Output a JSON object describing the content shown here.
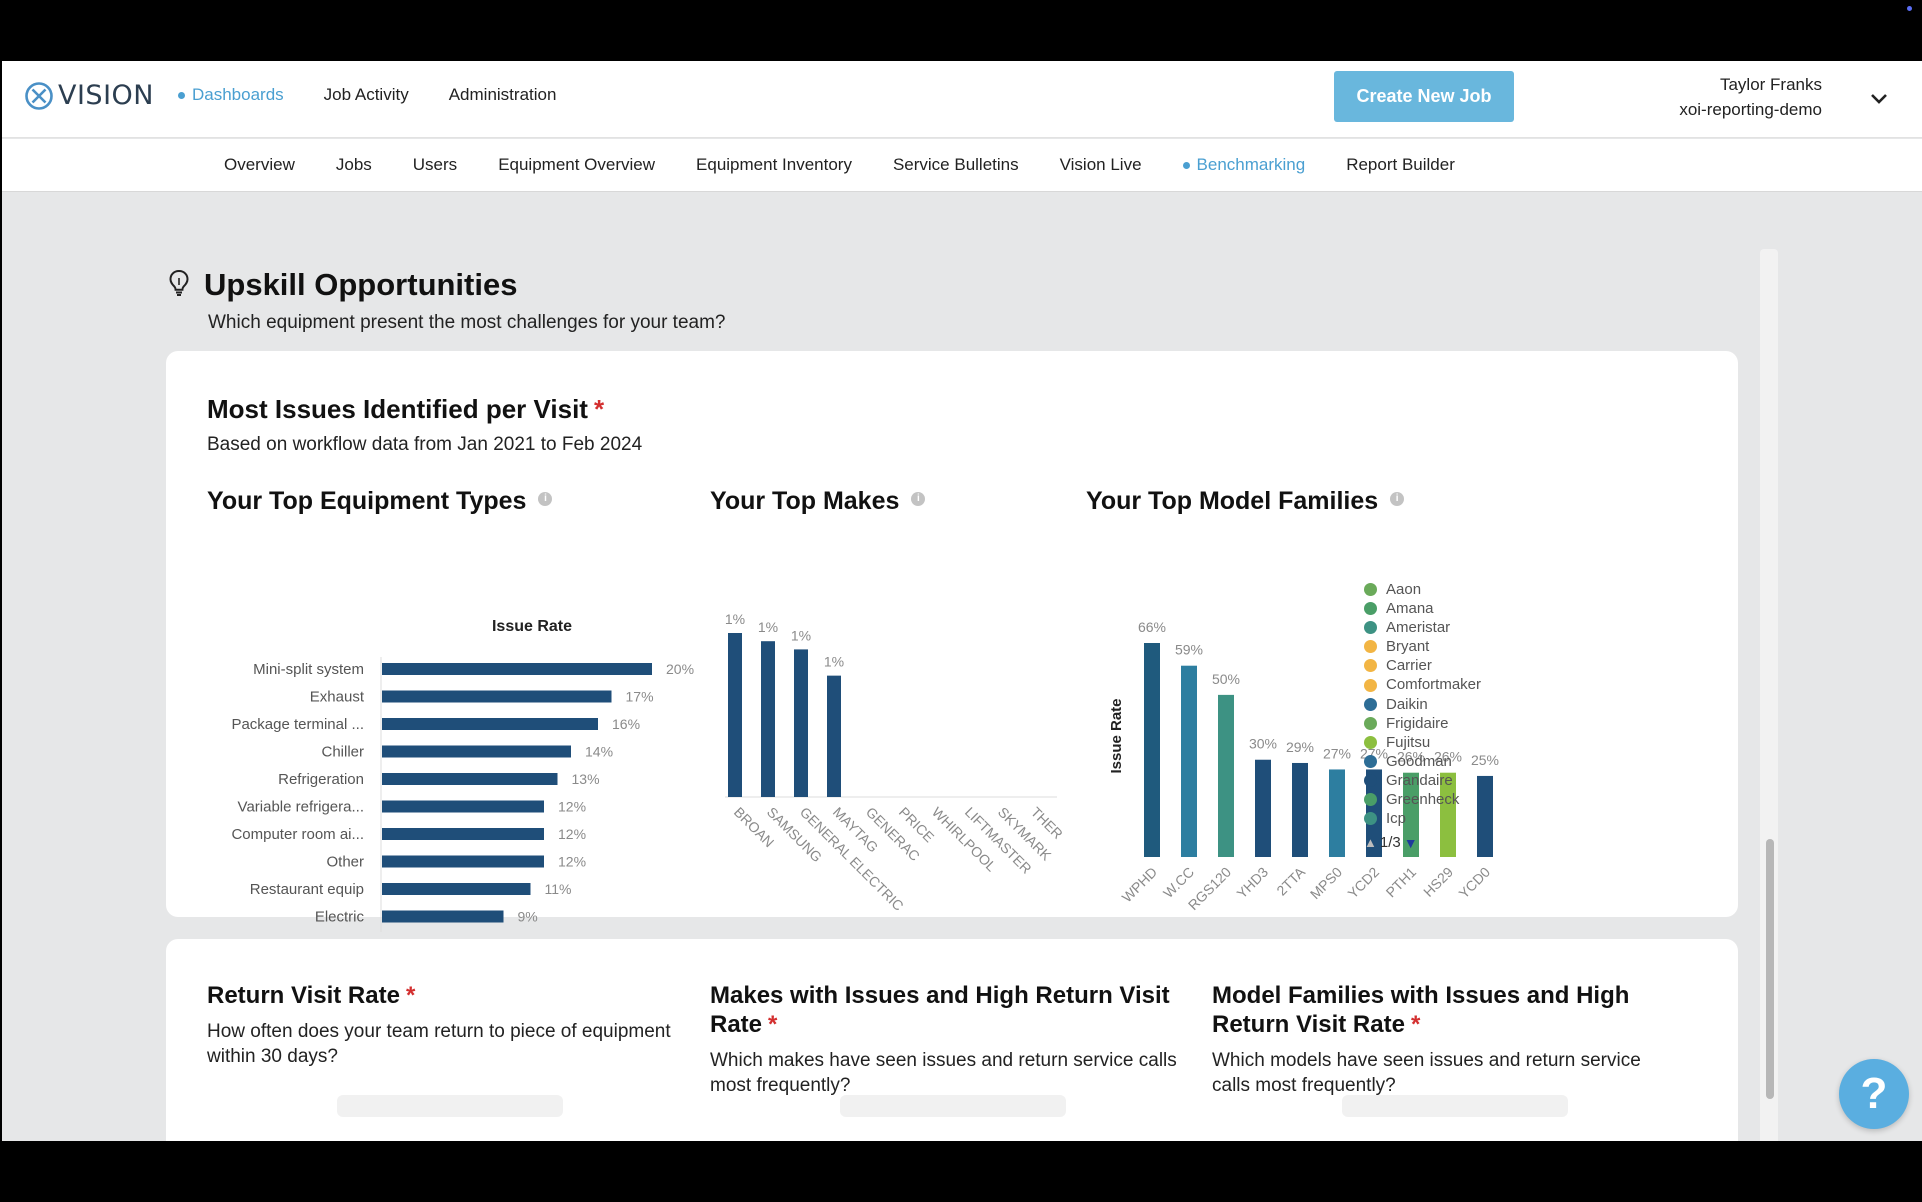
{
  "header": {
    "logo_text": "VISION",
    "nav": [
      "Dashboards",
      "Job Activity",
      "Administration"
    ],
    "create_button": "Create New Job",
    "user_name": "Taylor Franks",
    "user_org": "xoi-reporting-demo"
  },
  "subnav": [
    "Overview",
    "Jobs",
    "Users",
    "Equipment Overview",
    "Equipment Inventory",
    "Service Bulletins",
    "Vision Live",
    "Benchmarking",
    "Report Builder"
  ],
  "section": {
    "title": "Upskill Opportunities",
    "subtitle": "Which equipment present the most challenges for your team?"
  },
  "card1": {
    "title": "Most Issues Identified per Visit",
    "required_mark": "*",
    "subtitle": "Based on workflow data from Jan 2021 to Feb 2024"
  },
  "chart_data": [
    {
      "type": "bar",
      "orientation": "horizontal",
      "title": "Your Top Equipment Types",
      "xlabel": "Issue Rate",
      "categories": [
        "Mini-split system",
        "Exhaust",
        "Package terminal ...",
        "Chiller",
        "Refrigeration",
        "Variable refrigera...",
        "Computer room ai...",
        "Other",
        "Restaurant equip",
        "Electric"
      ],
      "values": [
        20,
        17,
        16,
        14,
        13,
        12,
        12,
        12,
        11,
        9
      ],
      "labels": [
        "20%",
        "17%",
        "16%",
        "14%",
        "13%",
        "12%",
        "12%",
        "12%",
        "11%",
        "9%"
      ],
      "bar_color": "#1f4e79"
    },
    {
      "type": "bar",
      "title": "Your Top Makes",
      "categories": [
        "BROAN",
        "SAMSUNG",
        "GENERAL ELECTRIC",
        "MAYTAG",
        "GENERAC",
        "PRICE",
        "WHIRLPOOL",
        "LIFTMASTER",
        "SKYMARK",
        "THER"
      ],
      "values": [
        1,
        1,
        1,
        1,
        0,
        0,
        0,
        0,
        0,
        0
      ],
      "heights": [
        100,
        95,
        90,
        74,
        0,
        0,
        0,
        0,
        0,
        0
      ],
      "labels": [
        "1%",
        "1%",
        "1%",
        "1%",
        "",
        "",
        "",
        "",
        "",
        ""
      ],
      "bar_color": "#1f4e79"
    },
    {
      "type": "bar",
      "title": "Your Top Model Families",
      "ylabel": "Issue Rate",
      "categories": [
        "WPHD",
        "W.CC",
        "RGS120",
        "YHD3",
        "2TTA",
        "MPS0",
        "YCD2",
        "PTH1",
        "HS29",
        "YCD0"
      ],
      "values": [
        66,
        59,
        50,
        30,
        29,
        27,
        27,
        26,
        26,
        25
      ],
      "labels": [
        "66%",
        "59%",
        "50%",
        "30%",
        "29%",
        "27%",
        "27%",
        "26%",
        "26%",
        "25%"
      ],
      "colors": [
        "#1f5a7d",
        "#2d7ea0",
        "#3d9283",
        "#1f4e79",
        "#1f4e79",
        "#2d7ea0",
        "#1f4e79",
        "#4a9e67",
        "#8cbf3f",
        "#1f4e79"
      ],
      "legend": [
        {
          "name": "Aaon",
          "color": "#6aaa5a"
        },
        {
          "name": "Amana",
          "color": "#4a9e67"
        },
        {
          "name": "Ameristar",
          "color": "#3d9283"
        },
        {
          "name": "Bryant",
          "color": "#f2b544"
        },
        {
          "name": "Carrier",
          "color": "#f2b544"
        },
        {
          "name": "Comfortmaker",
          "color": "#f2b544"
        },
        {
          "name": "Daikin",
          "color": "#2d6d96"
        },
        {
          "name": "Frigidaire",
          "color": "#6aaa5a"
        },
        {
          "name": "Fujitsu",
          "color": "#8cbf3f"
        },
        {
          "name": "Goodman",
          "color": "#2d6d96"
        },
        {
          "name": "Grandaire",
          "color": "#1f4e79"
        },
        {
          "name": "Greenheck",
          "color": "#4a9e67"
        },
        {
          "name": "Icp",
          "color": "#3d9283"
        }
      ],
      "legend_page": "1/3"
    }
  ],
  "card2": {
    "columns": [
      {
        "title": "Return Visit Rate",
        "subtitle": "How often does your team return to piece of equipment within 30 days?"
      },
      {
        "title": "Makes with Issues and High Return Visit Rate",
        "subtitle": "Which makes have seen issues and return service calls most frequently?"
      },
      {
        "title": "Model Families with Issues and High Return Visit Rate",
        "subtitle": "Which models have seen issues and return service calls most frequently?"
      }
    ]
  },
  "help": {
    "label": "?"
  }
}
